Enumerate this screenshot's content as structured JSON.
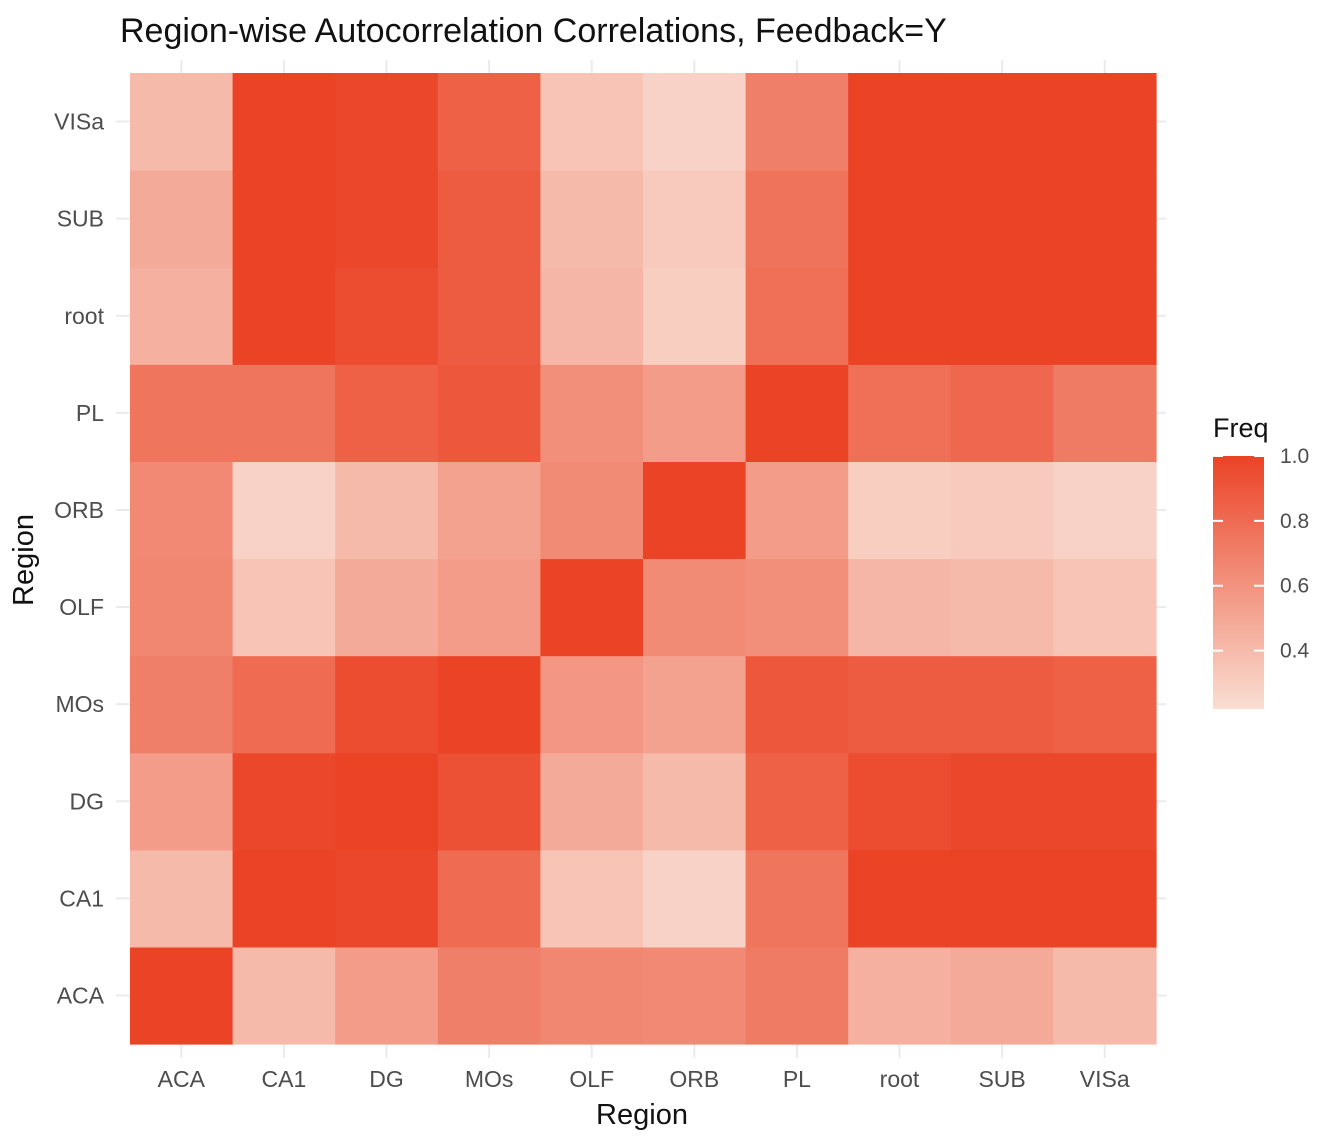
{
  "chart_data": {
    "type": "heatmap",
    "title": "Region-wise Autocorrelation Correlations, Feedback=Y",
    "xlabel": "Region",
    "ylabel": "Region",
    "x_categories": [
      "ACA",
      "CA1",
      "DG",
      "MOs",
      "OLF",
      "ORB",
      "PL",
      "root",
      "SUB",
      "VISa"
    ],
    "y_categories": [
      "ACA",
      "CA1",
      "DG",
      "MOs",
      "OLF",
      "ORB",
      "PL",
      "root",
      "SUB",
      "VISa"
    ],
    "values": [
      [
        1.0,
        0.4,
        0.55,
        0.7,
        0.66,
        0.65,
        0.75,
        0.45,
        0.48,
        0.4
      ],
      [
        0.4,
        1.0,
        0.98,
        0.8,
        0.35,
        0.28,
        0.75,
        1.0,
        1.0,
        1.0
      ],
      [
        0.55,
        0.98,
        1.0,
        0.95,
        0.48,
        0.4,
        0.85,
        0.95,
        0.98,
        0.98
      ],
      [
        0.7,
        0.8,
        0.93,
        1.0,
        0.55,
        0.52,
        0.9,
        0.88,
        0.88,
        0.85
      ],
      [
        0.66,
        0.35,
        0.48,
        0.58,
        1.0,
        0.64,
        0.62,
        0.42,
        0.4,
        0.35
      ],
      [
        0.65,
        0.28,
        0.4,
        0.52,
        0.64,
        1.0,
        0.55,
        0.3,
        0.32,
        0.28
      ],
      [
        0.72,
        0.75,
        0.85,
        0.9,
        0.62,
        0.55,
        1.0,
        0.78,
        0.76,
        0.7
      ],
      [
        0.45,
        1.0,
        0.95,
        0.88,
        0.42,
        0.3,
        0.78,
        1.0,
        1.0,
        1.0
      ],
      [
        0.48,
        1.0,
        0.98,
        0.88,
        0.4,
        0.32,
        0.82,
        1.0,
        1.0,
        1.0
      ],
      [
        0.4,
        1.0,
        0.98,
        0.85,
        0.35,
        0.28,
        0.72,
        1.0,
        1.0,
        1.0
      ]
    ],
    "value_range": [
      0.22,
      1.0
    ],
    "legend": {
      "title": "Freq",
      "ticks": [
        1.0,
        0.8,
        0.6,
        0.4
      ],
      "tick_labels": [
        "1.0",
        "0.8",
        "0.6",
        "0.4"
      ],
      "placement": "right"
    },
    "color_low": "#f9ded3",
    "color_high": "#eb4326",
    "grid": true
  }
}
